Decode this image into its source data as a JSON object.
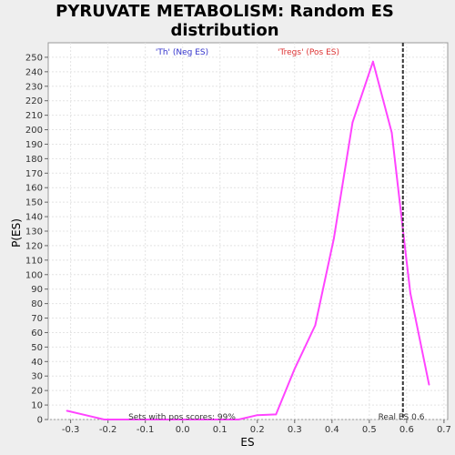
{
  "chart_data": {
    "type": "line",
    "title_line1": "PYRUVATE METABOLISM: Random ES",
    "title_line2": "distribution",
    "xlabel": "ES",
    "ylabel": "P(ES)",
    "xlim": [
      -0.36,
      0.71
    ],
    "ylim": [
      0,
      260
    ],
    "x_ticks": [
      -0.3,
      -0.2,
      -0.1,
      0.0,
      0.1,
      0.2,
      0.3,
      0.4,
      0.5,
      0.6,
      0.7
    ],
    "x_tick_labels": [
      "-0.3",
      "-0.2",
      "-0.1",
      "0.0",
      "0.1",
      "0.2",
      "0.3",
      "0.4",
      "0.5",
      "0.6",
      "0.7"
    ],
    "y_ticks": [
      0,
      10,
      20,
      30,
      40,
      50,
      60,
      70,
      80,
      90,
      100,
      110,
      120,
      130,
      140,
      150,
      160,
      170,
      180,
      190,
      200,
      210,
      220,
      230,
      240,
      250
    ],
    "y_tick_labels": [
      "0",
      "10",
      "20",
      "30",
      "40",
      "50",
      "60",
      "70",
      "80",
      "90",
      "100",
      "110",
      "120",
      "130",
      "140",
      "150",
      "160",
      "170",
      "180",
      "190",
      "200",
      "210",
      "220",
      "230",
      "240",
      "250"
    ],
    "grid": true,
    "series": [
      {
        "color": "#ff44ff",
        "x": [
          -0.31,
          -0.26,
          -0.21,
          -0.16,
          -0.11,
          -0.06,
          0.0,
          0.05,
          0.1,
          0.15,
          0.2,
          0.25,
          0.3,
          0.355,
          0.405,
          0.455,
          0.51,
          0.56,
          0.595,
          0.61,
          0.66
        ],
        "y": [
          6,
          3,
          0,
          0,
          0,
          0,
          0,
          0,
          0,
          0,
          3,
          3.5,
          35,
          65,
          125,
          205,
          247,
          198,
          120,
          87,
          24
        ]
      }
    ],
    "real_es": {
      "x": 0.59,
      "color": "#333333",
      "label": "Real ES 0.6"
    },
    "legend": [
      {
        "text": "'Th' (Neg ES)",
        "color": "#3333cc"
      },
      {
        "text": "'Tregs' (Pos ES)",
        "color": "#dd3333"
      }
    ],
    "annotation": "Sets with pos scores: 99%"
  }
}
